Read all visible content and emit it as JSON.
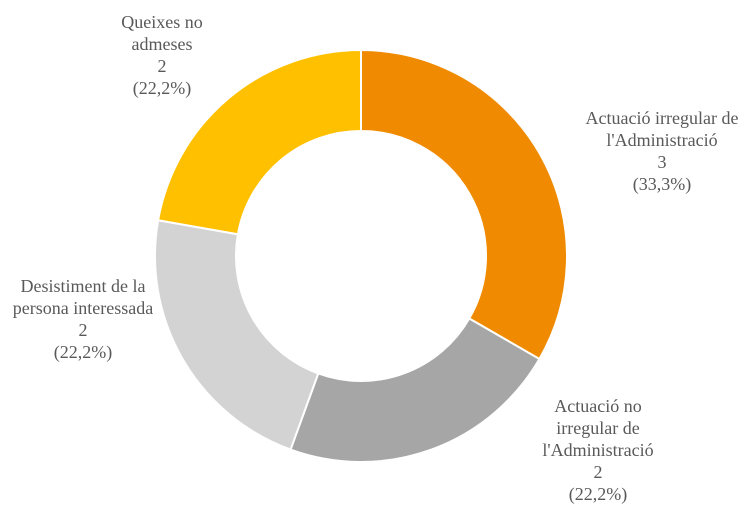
{
  "chart_data": {
    "type": "donut",
    "categories": [
      "Actuació irregular de l'Administració",
      "Actuació no irregular de l'Administració",
      "Desistiment de la persona interessada",
      "Queixes no admeses"
    ],
    "values": [
      3,
      2,
      2,
      2
    ],
    "percentages": [
      33.3,
      22.2,
      22.2,
      22.2
    ],
    "percentage_labels": [
      "(33,3%)",
      "(22,2%)",
      "(22,2%)",
      "(22,2%)"
    ],
    "colors": [
      "#f08a00",
      "#a6a6a6",
      "#d4d3d3",
      "#ffc000"
    ]
  }
}
